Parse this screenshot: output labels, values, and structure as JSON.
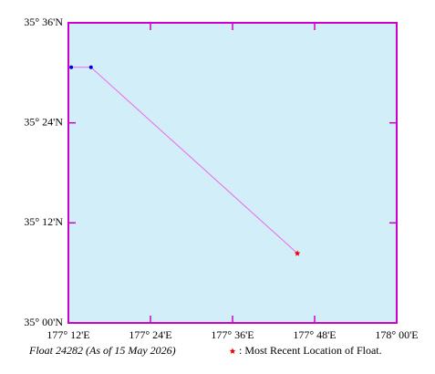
{
  "chart_data": {
    "type": "track",
    "caption": "Float 24282 (As of 15 May 2026)",
    "legend_label": ": Most Recent Location of Float.",
    "x": [
      177.207,
      177.255,
      177.758
    ],
    "series": [
      {
        "values": [
          35.511,
          35.511,
          35.139
        ],
        "color": "#ee66ee"
      }
    ],
    "point_color": "#0000cc",
    "latest_color": "#ee0000",
    "background": "#d2eef8",
    "frame_color": "#cc00cc",
    "xlim": [
      177.2,
      178.0
    ],
    "ylim": [
      35.0,
      35.6
    ],
    "xticks": [
      {
        "value": 177.2,
        "label": "177° 12'E"
      },
      {
        "value": 177.4,
        "label": "177° 24'E"
      },
      {
        "value": 177.6,
        "label": "177° 36'E"
      },
      {
        "value": 177.8,
        "label": "177° 48'E"
      },
      {
        "value": 178.0,
        "label": "178° 00'E"
      }
    ],
    "yticks": [
      {
        "value": 35.0,
        "label": "35° 00'N"
      },
      {
        "value": 35.2,
        "label": "35° 12'N"
      },
      {
        "value": 35.4,
        "label": "35° 24'N"
      },
      {
        "value": 35.6,
        "label": "35° 36'N"
      }
    ]
  }
}
